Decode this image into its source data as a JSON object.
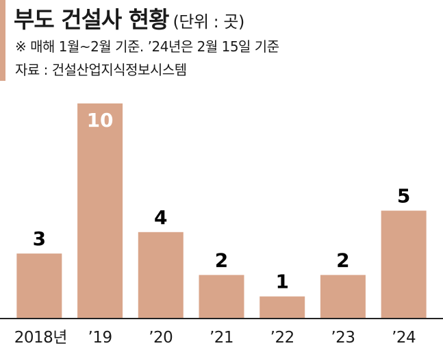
{
  "header": {
    "title": "부도 건설사 현황",
    "unit": "(단위 : 곳)",
    "note": "※ 매해 1월~2월 기준. ’24년은 2월 15일 기준",
    "source": "자료 : 건설산업지식정보시스템"
  },
  "colors": {
    "bar": "#d9a58a",
    "accent": "#d9a58a",
    "axis": "#222222"
  },
  "chart_data": {
    "type": "bar",
    "title": "부도 건설사 현황",
    "unit": "곳",
    "categories": [
      "2018년",
      "’19",
      "’20",
      "’21",
      "’22",
      "’23",
      "’24"
    ],
    "values": [
      3,
      10,
      4,
      2,
      1,
      2,
      5
    ],
    "ylim": [
      0,
      10
    ],
    "grid": false,
    "legend": "none",
    "value_labels": true
  }
}
